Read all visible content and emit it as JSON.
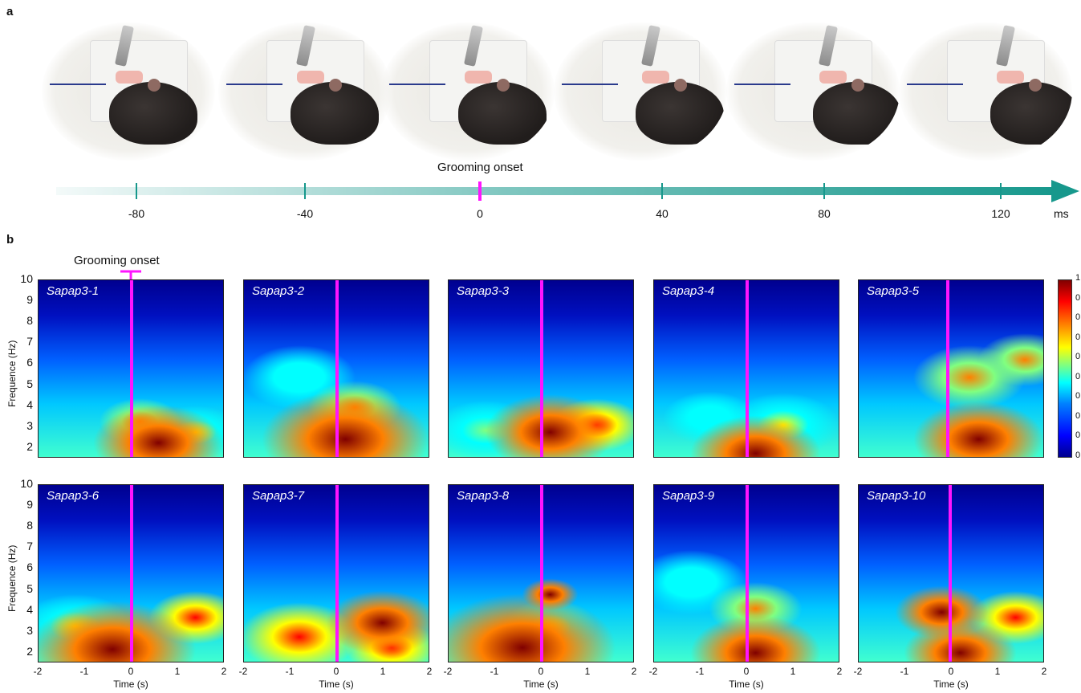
{
  "panel_a": {
    "letter": "a",
    "onset_label": "Grooming onset",
    "timeline_ticks": [
      "-80",
      "-40",
      "0",
      "40",
      "80",
      "120"
    ],
    "unit": "ms",
    "colors": {
      "arrow": "#17988c",
      "onset_tick": "#ff14ff"
    }
  },
  "panel_b": {
    "letter": "b",
    "onset_label": "Grooming onset",
    "ylabel": "Frequence (Hz)",
    "xlabel": "Time (s)",
    "yticks": [
      "10",
      "9",
      "8",
      "7",
      "6",
      "5",
      "4",
      "3",
      "2"
    ],
    "xticks": [
      "-2",
      "-1",
      "0",
      "1",
      "2"
    ],
    "colorbar_top": "1",
    "colorbar_tick": "0",
    "plots": [
      {
        "name": "Sapap3-1"
      },
      {
        "name": "Sapap3-2"
      },
      {
        "name": "Sapap3-3"
      },
      {
        "name": "Sapap3-4"
      },
      {
        "name": "Sapap3-5"
      },
      {
        "name": "Sapap3-6"
      },
      {
        "name": "Sapap3-7"
      },
      {
        "name": "Sapap3-8"
      },
      {
        "name": "Sapap3-9"
      },
      {
        "name": "Sapap3-10"
      }
    ],
    "colors": {
      "onset_line": "#ff14ff",
      "cmap_low": "#00008f",
      "cmap_high": "#800000"
    }
  }
}
